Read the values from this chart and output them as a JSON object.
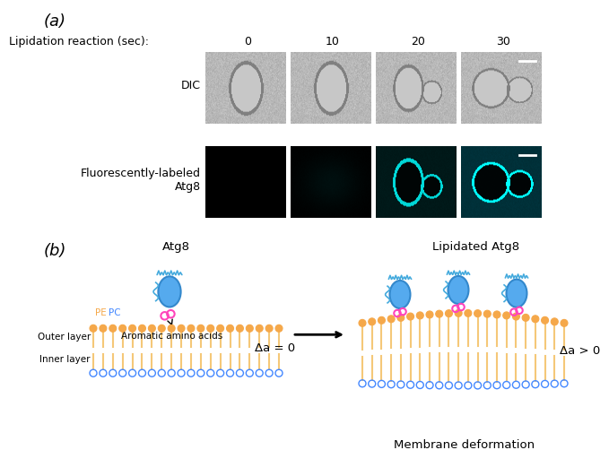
{
  "panel_a_label": "(a)",
  "panel_b_label": "(b)",
  "lipidation_label": "Lipidation reaction (sec):",
  "time_points": [
    "0",
    "10",
    "20",
    "30"
  ],
  "dic_label": "DIC",
  "fluo_label": "Fluorescently-labeled\nAtg8",
  "atg8_label": "Atg8",
  "lipidated_label": "Lipidated Atg8",
  "aromatic_label": "Aromatic amino acids",
  "outer_layer_label": "Outer layer",
  "inner_layer_label": "Inner layer",
  "pe_label": "PE",
  "pc_label": "PC",
  "delta_a_0": "Δa = 0",
  "delta_a_pos": "Δa > 0",
  "membrane_deformation": "Membrane deformation",
  "bg_color": "#ffffff",
  "orange": "#f5a84a",
  "blue_head": "#4488ff",
  "cyan_bright": "#00e5e5",
  "cyan_dim": "#004444",
  "protein_fill": "#55aaee",
  "protein_edge": "#3388cc",
  "curl_color": "#44aadd",
  "ring_color": "#ff44bb",
  "tail_color": "#f5c878",
  "panel_label_fontsize": 13,
  "label_fontsize": 9,
  "small_fontsize": 8
}
